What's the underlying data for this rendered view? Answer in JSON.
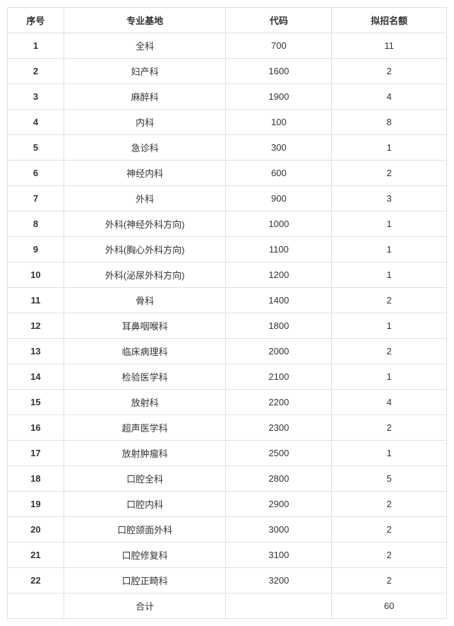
{
  "table": {
    "headers": {
      "seq": "序号",
      "name": "专业基地",
      "code": "代码",
      "quota": "拟招名额"
    },
    "rows": [
      {
        "seq": "1",
        "name": "全科",
        "code": "700",
        "quota": "11"
      },
      {
        "seq": "2",
        "name": "妇产科",
        "code": "1600",
        "quota": "2"
      },
      {
        "seq": "3",
        "name": "麻醉科",
        "code": "1900",
        "quota": "4"
      },
      {
        "seq": "4",
        "name": "内科",
        "code": "100",
        "quota": "8"
      },
      {
        "seq": "5",
        "name": "急诊科",
        "code": "300",
        "quota": "1"
      },
      {
        "seq": "6",
        "name": "神经内科",
        "code": "600",
        "quota": "2"
      },
      {
        "seq": "7",
        "name": "外科",
        "code": "900",
        "quota": "3"
      },
      {
        "seq": "8",
        "name": "外科(神经外科方向)",
        "code": "1000",
        "quota": "1"
      },
      {
        "seq": "9",
        "name": "外科(胸心外科方向)",
        "code": "1100",
        "quota": "1"
      },
      {
        "seq": "10",
        "name": "外科(泌尿外科方向)",
        "code": "1200",
        "quota": "1"
      },
      {
        "seq": "11",
        "name": "骨科",
        "code": "1400",
        "quota": "2"
      },
      {
        "seq": "12",
        "name": "耳鼻咽喉科",
        "code": "1800",
        "quota": "1"
      },
      {
        "seq": "13",
        "name": "临床病理科",
        "code": "2000",
        "quota": "2"
      },
      {
        "seq": "14",
        "name": "检验医学科",
        "code": "2100",
        "quota": "1"
      },
      {
        "seq": "15",
        "name": "放射科",
        "code": "2200",
        "quota": "4"
      },
      {
        "seq": "16",
        "name": "超声医学科",
        "code": "2300",
        "quota": "2"
      },
      {
        "seq": "17",
        "name": "放射肿瘤科",
        "code": "2500",
        "quota": "1"
      },
      {
        "seq": "18",
        "name": "口腔全科",
        "code": "2800",
        "quota": "5"
      },
      {
        "seq": "19",
        "name": "口腔内科",
        "code": "2900",
        "quota": "2"
      },
      {
        "seq": "20",
        "name": "口腔颌面外科",
        "code": "3000",
        "quota": "2"
      },
      {
        "seq": "21",
        "name": "口腔修复科",
        "code": "3100",
        "quota": "2"
      },
      {
        "seq": "22",
        "name": "口腔正畸科",
        "code": "3200",
        "quota": "2"
      }
    ],
    "footer": {
      "seq": "",
      "name": "合计",
      "code": "",
      "quota": "60"
    },
    "styling": {
      "border_color": "#e0e0e0",
      "text_color": "#333333",
      "background_color": "#ffffff",
      "font_size": 13,
      "header_font_weight": "bold",
      "seq_font_weight": "bold",
      "col_widths": {
        "seq": 80,
        "name": 230,
        "code": 150,
        "quota": 163
      }
    }
  }
}
